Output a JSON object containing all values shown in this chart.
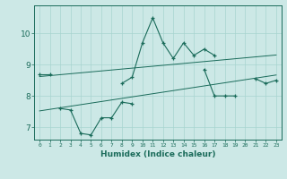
{
  "xlabel": "Humidex (Indice chaleur)",
  "x_values": [
    0,
    1,
    2,
    3,
    4,
    5,
    6,
    7,
    8,
    9,
    10,
    11,
    12,
    13,
    14,
    15,
    16,
    17,
    18,
    19,
    20,
    21,
    22,
    23
  ],
  "line1_y": [
    8.7,
    8.7,
    null,
    null,
    null,
    null,
    null,
    null,
    8.4,
    8.6,
    9.7,
    10.5,
    9.7,
    9.2,
    9.7,
    9.3,
    9.5,
    9.3,
    null,
    null,
    null,
    8.55,
    8.4,
    8.5
  ],
  "line2_y": [
    null,
    null,
    7.6,
    7.55,
    6.8,
    6.75,
    7.3,
    7.3,
    7.8,
    7.75,
    null,
    null,
    null,
    null,
    null,
    null,
    8.85,
    8.0,
    8.0,
    8.0,
    null,
    null,
    null,
    null
  ],
  "trend1_y": [
    8.62,
    8.65,
    8.68,
    8.71,
    8.74,
    8.77,
    8.8,
    8.83,
    8.86,
    8.89,
    8.92,
    8.95,
    8.98,
    9.01,
    9.04,
    9.07,
    9.1,
    9.13,
    9.16,
    9.19,
    9.22,
    9.25,
    9.28,
    9.31
  ],
  "trend2_y": [
    7.52,
    7.57,
    7.62,
    7.67,
    7.72,
    7.77,
    7.82,
    7.87,
    7.92,
    7.97,
    8.02,
    8.07,
    8.12,
    8.17,
    8.22,
    8.27,
    8.32,
    8.37,
    8.42,
    8.47,
    8.52,
    8.57,
    8.62,
    8.67
  ],
  "line_color": "#1a6b5a",
  "bg_color": "#cce8e6",
  "grid_color": "#a8d4d0",
  "ylim": [
    6.6,
    10.9
  ],
  "xlim": [
    -0.5,
    23.5
  ],
  "yticks": [
    7,
    8,
    9,
    10
  ],
  "xticks": [
    0,
    1,
    2,
    3,
    4,
    5,
    6,
    7,
    8,
    9,
    10,
    11,
    12,
    13,
    14,
    15,
    16,
    17,
    18,
    19,
    20,
    21,
    22,
    23
  ]
}
